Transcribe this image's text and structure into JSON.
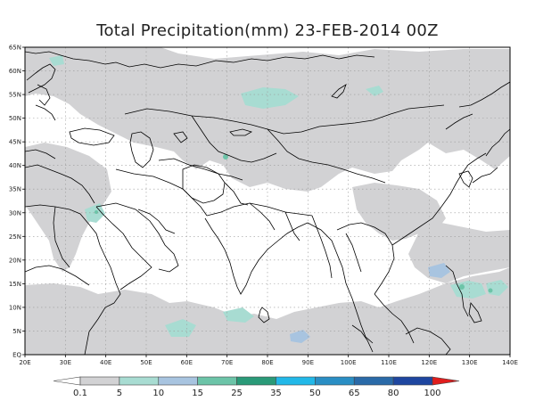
{
  "title": "Total Precipitation(mm) 23-FEB-2014 00Z",
  "map": {
    "lon_range": [
      20,
      140
    ],
    "lat_range": [
      0,
      65
    ],
    "lon_labels": [
      "20E",
      "30E",
      "40E",
      "50E",
      "60E",
      "70E",
      "80E",
      "90E",
      "100E",
      "110E",
      "120E",
      "130E",
      "140E"
    ],
    "lat_labels": [
      "EQ",
      "5N",
      "10N",
      "15N",
      "20N",
      "25N",
      "30N",
      "35N",
      "40N",
      "45N",
      "50N",
      "55N",
      "60N",
      "65N"
    ]
  },
  "colorbar": {
    "labels": [
      "0.1",
      "5",
      "10",
      "15",
      "25",
      "35",
      "50",
      "65",
      "80",
      "100"
    ],
    "colors": [
      "#ffffff",
      "#d2d2d4",
      "#a8dcd2",
      "#a8c4e0",
      "#6cc4a8",
      "#2a9a78",
      "#22b8e8",
      "#2a8ec4",
      "#2a6aa8",
      "#1e46a0",
      "#e01e1e"
    ]
  },
  "colors": {
    "precip_light": "#d2d2d4",
    "precip_teal": "#a8dcd2",
    "precip_blue": "#a8c4e0",
    "precip_green": "#6cc4a8",
    "coast": "#000000"
  }
}
